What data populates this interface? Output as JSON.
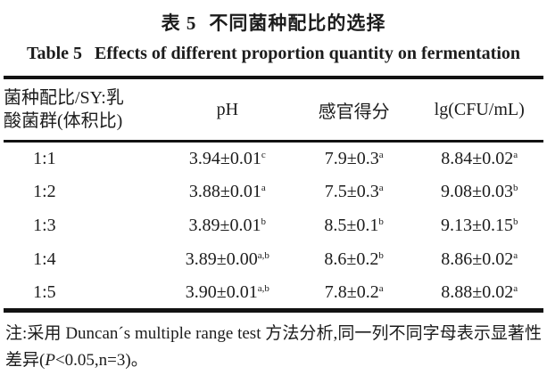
{
  "titles": {
    "cn_label": "表 5",
    "cn_text": "不同菌种配比的选择",
    "en_label": "Table 5",
    "en_text": "Effects of different proportion quantity on fermentation"
  },
  "table": {
    "headers": {
      "col1_line1": "菌种配比/SY:乳",
      "col1_line2": "酸菌群(体积比)",
      "col2": "pH",
      "col3": "感官得分",
      "col4": "lg(CFU/mL)"
    },
    "rows": [
      {
        "ratio": "1:1",
        "ph": "3.94±0.01",
        "ph_sup": "c",
        "sensory": "7.9±0.3",
        "sensory_sup": "a",
        "cfu": "8.84±0.02",
        "cfu_sup": "a"
      },
      {
        "ratio": "1:2",
        "ph": "3.88±0.01",
        "ph_sup": "a",
        "sensory": "7.5±0.3",
        "sensory_sup": "a",
        "cfu": "9.08±0.03",
        "cfu_sup": "b"
      },
      {
        "ratio": "1:3",
        "ph": "3.89±0.01",
        "ph_sup": "b",
        "sensory": "8.5±0.1",
        "sensory_sup": "b",
        "cfu": "9.13±0.15",
        "cfu_sup": "b"
      },
      {
        "ratio": "1:4",
        "ph": "3.89±0.00",
        "ph_sup": "a,b",
        "sensory": "8.6±0.2",
        "sensory_sup": "b",
        "cfu": "8.86±0.02",
        "cfu_sup": "a"
      },
      {
        "ratio": "1:5",
        "ph": "3.90±0.01",
        "ph_sup": "a,b",
        "sensory": "7.8±0.2",
        "sensory_sup": "a",
        "cfu": "8.88±0.02",
        "cfu_sup": "a"
      }
    ]
  },
  "note": {
    "prefix": "注:采用 Duncan´s multiple range test 方法分析,同一列不同字母表示显著性差异(",
    "p_symbol": "P",
    "suffix": "<0.05,n=3)。"
  },
  "colors": {
    "text": "#1c1c1c",
    "rule": "#121212",
    "background": "#ffffff"
  }
}
